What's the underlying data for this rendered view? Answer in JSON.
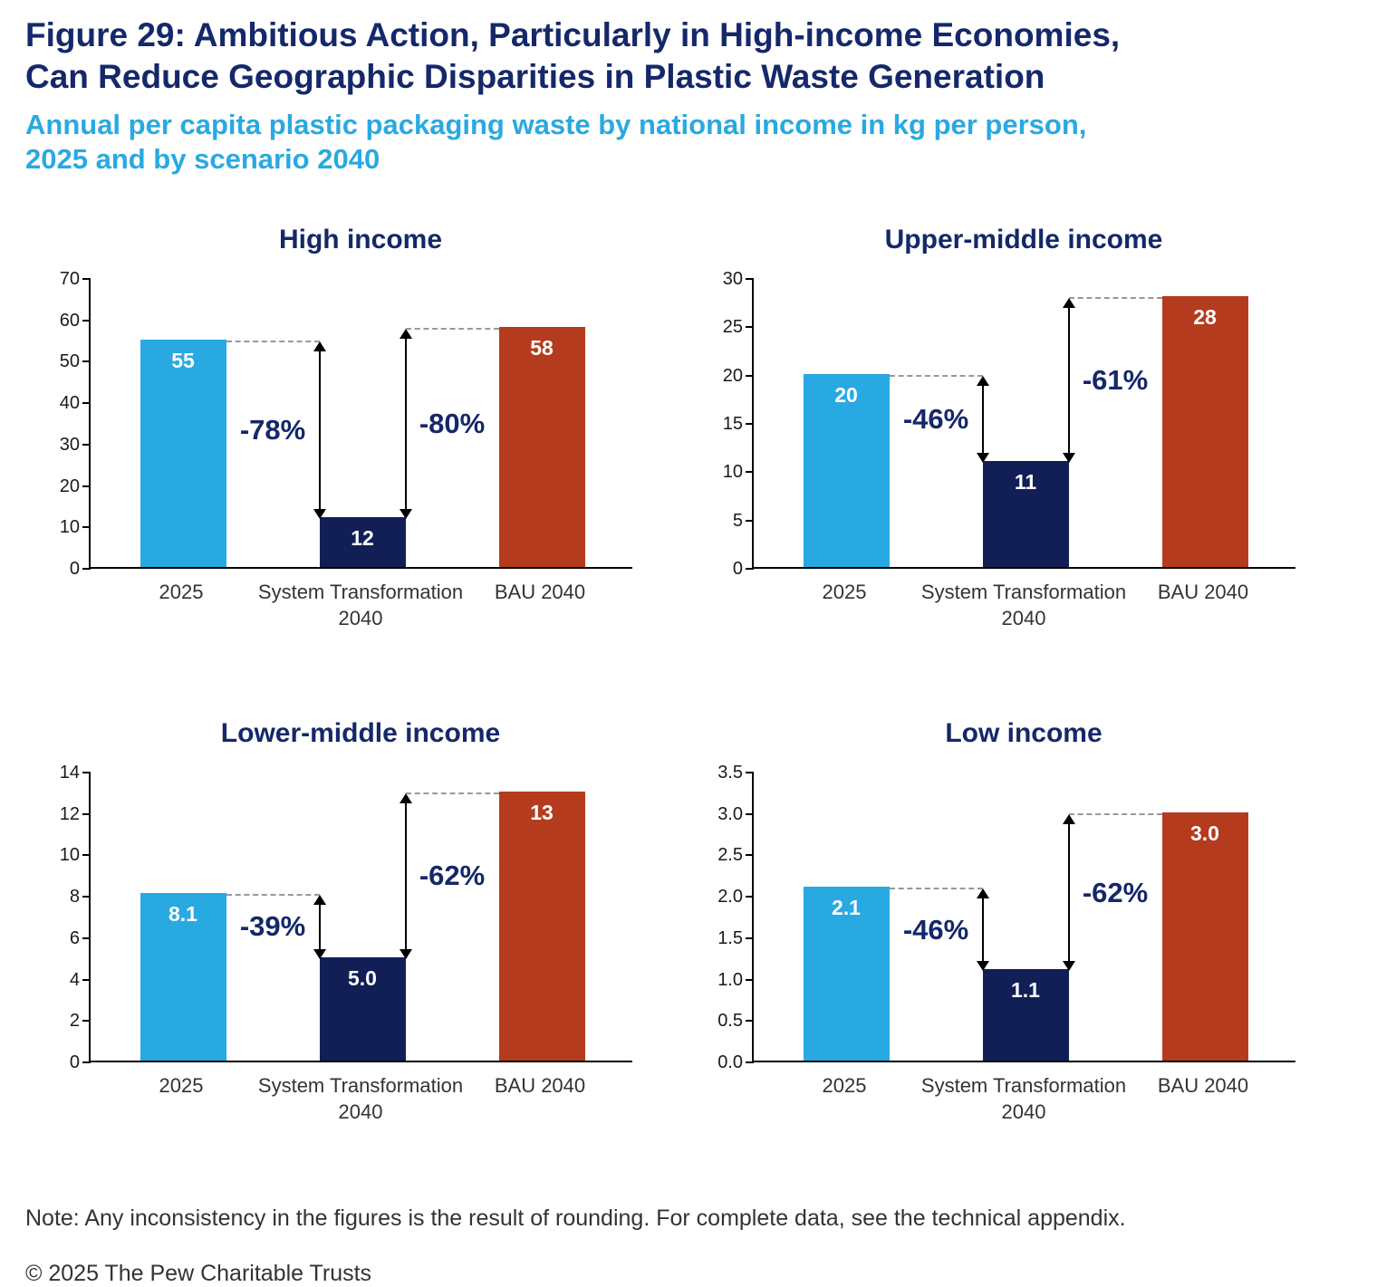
{
  "header": {
    "title_line1": "Figure 29: Ambitious Action, Particularly in High-income Economies,",
    "title_line2": "Can Reduce Geographic Disparities in Plastic Waste Generation",
    "subtitle_line1": "Annual per capita plastic packaging waste by national income in kg per person,",
    "subtitle_line2": "2025 and by scenario 2040"
  },
  "footer": {
    "note": "Note: Any inconsistency in the figures is the result of rounding. For complete data, see the technical appendix.",
    "copyright": "© 2025 The Pew Charitable Trusts"
  },
  "colors": {
    "title_navy": "#14286a",
    "subtitle_blue": "#29a9e1",
    "bar_2025": "#29a9e1",
    "bar_system_transformation": "#121f56",
    "bar_bau": "#b43b1d",
    "annotation_navy": "#14286a",
    "dashed_line": "#999999"
  },
  "chart_data": [
    {
      "type": "bar",
      "title": "High income",
      "xlabel": "",
      "ylabel": "",
      "ylim": [
        0,
        70
      ],
      "ymax": 70,
      "grid": false,
      "yticks": [
        "0",
        "10",
        "20",
        "30",
        "40",
        "50",
        "60",
        "70"
      ],
      "bars": [
        {
          "category": "2025",
          "value": 55,
          "label": "55"
        },
        {
          "category": "System Transformation\n2040",
          "value": 12,
          "label": "12"
        },
        {
          "category": "BAU 2040",
          "value": 58,
          "label": "58"
        }
      ],
      "annotations": [
        {
          "label": "-78%",
          "from": 0,
          "to": 1,
          "side": "left"
        },
        {
          "label": "-80%",
          "from": 2,
          "to": 1,
          "side": "right"
        }
      ]
    },
    {
      "type": "bar",
      "title": "Upper-middle income",
      "xlabel": "",
      "ylabel": "",
      "ylim": [
        0,
        30
      ],
      "ymax": 30,
      "grid": false,
      "yticks": [
        "0",
        "5",
        "10",
        "15",
        "20",
        "25",
        "30"
      ],
      "bars": [
        {
          "category": "2025",
          "value": 20,
          "label": "20"
        },
        {
          "category": "System Transformation\n2040",
          "value": 11,
          "label": "11"
        },
        {
          "category": "BAU 2040",
          "value": 28,
          "label": "28"
        }
      ],
      "annotations": [
        {
          "label": "-46%",
          "from": 0,
          "to": 1,
          "side": "left"
        },
        {
          "label": "-61%",
          "from": 2,
          "to": 1,
          "side": "right"
        }
      ]
    },
    {
      "type": "bar",
      "title": "Lower-middle income",
      "xlabel": "",
      "ylabel": "",
      "ylim": [
        0,
        14
      ],
      "ymax": 14,
      "grid": false,
      "yticks": [
        "0",
        "2",
        "4",
        "6",
        "8",
        "10",
        "12",
        "14"
      ],
      "bars": [
        {
          "category": "2025",
          "value": 8.1,
          "label": "8.1"
        },
        {
          "category": "System Transformation\n2040",
          "value": 5.0,
          "label": "5.0"
        },
        {
          "category": "BAU 2040",
          "value": 13,
          "label": "13"
        }
      ],
      "annotations": [
        {
          "label": "-39%",
          "from": 0,
          "to": 1,
          "side": "left"
        },
        {
          "label": "-62%",
          "from": 2,
          "to": 1,
          "side": "right"
        }
      ]
    },
    {
      "type": "bar",
      "title": "Low income",
      "xlabel": "",
      "ylabel": "",
      "ylim": [
        0,
        3.5
      ],
      "ymax": 3.5,
      "grid": false,
      "yticks": [
        "0.0",
        "0.5",
        "1.0",
        "1.5",
        "2.0",
        "2.5",
        "3.0",
        "3.5"
      ],
      "bars": [
        {
          "category": "2025",
          "value": 2.1,
          "label": "2.1"
        },
        {
          "category": "System Transformation\n2040",
          "value": 1.1,
          "label": "1.1"
        },
        {
          "category": "BAU 2040",
          "value": 3.0,
          "label": "3.0"
        }
      ],
      "annotations": [
        {
          "label": "-46%",
          "from": 0,
          "to": 1,
          "side": "left"
        },
        {
          "label": "-62%",
          "from": 2,
          "to": 1,
          "side": "right"
        }
      ]
    }
  ]
}
